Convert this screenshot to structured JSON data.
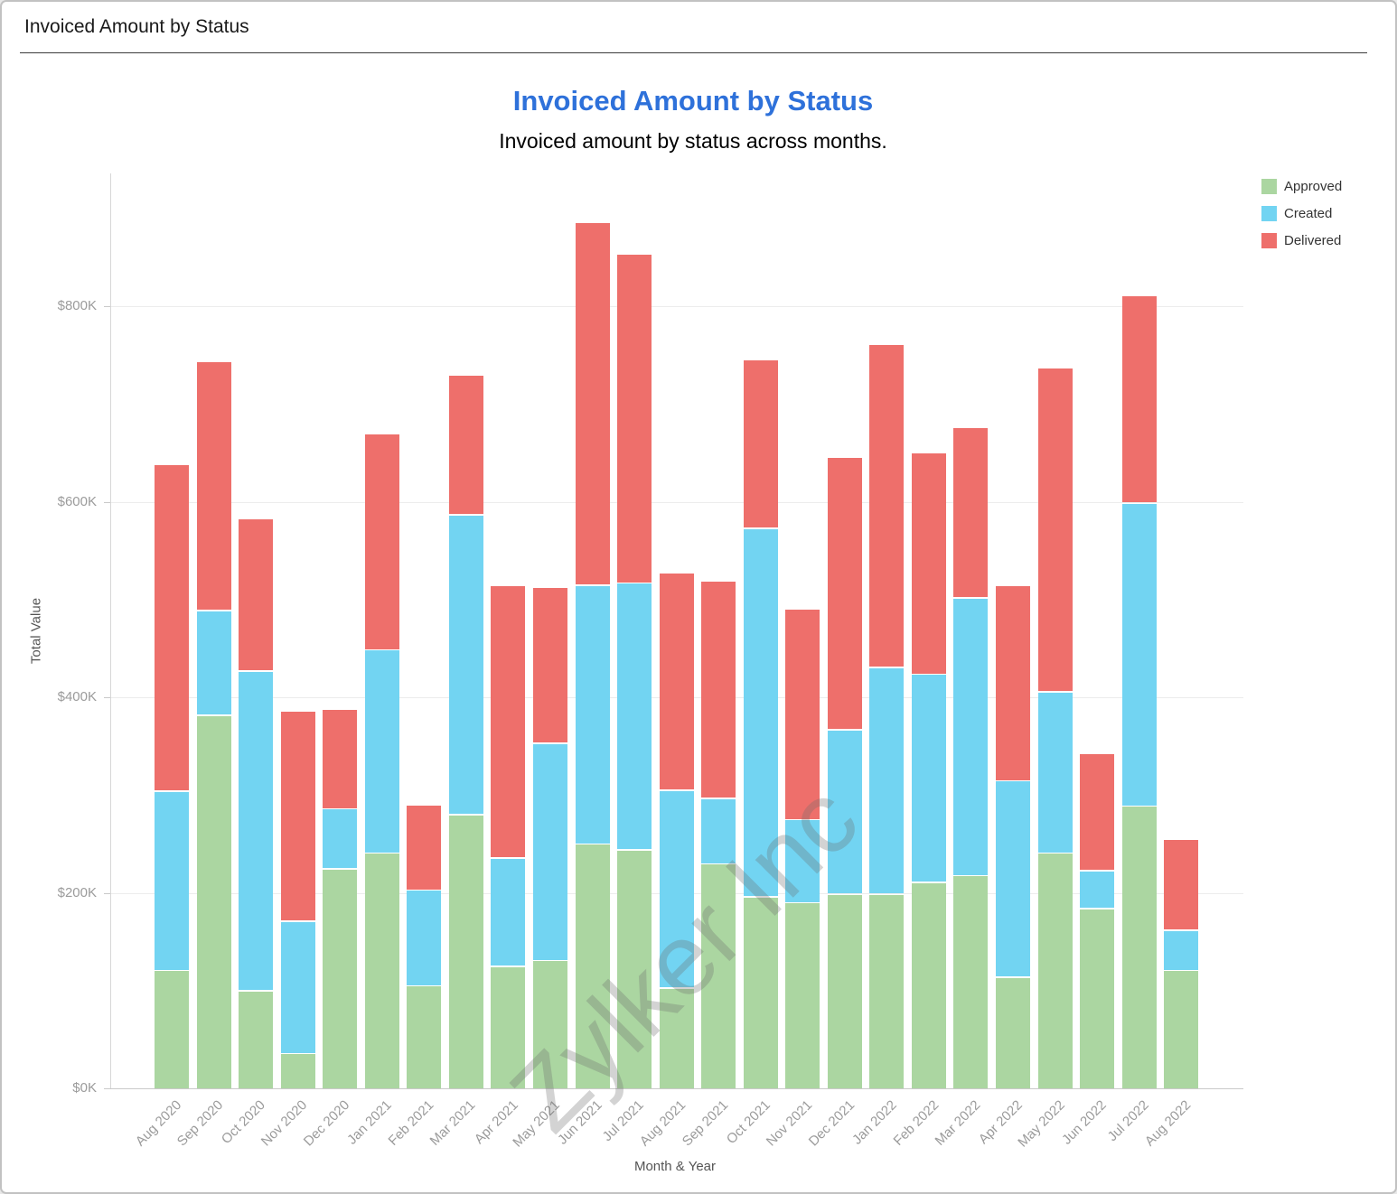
{
  "header": {
    "title": "Invoiced Amount by Status"
  },
  "chart_data": {
    "type": "bar",
    "stacked": true,
    "title": "Invoiced Amount by Status",
    "subtitle": "Invoiced amount by status across months.",
    "xlabel": "Month & Year",
    "ylabel": "Total Value",
    "ylim": [
      0,
      935
    ],
    "grid": true,
    "legend_position": "top-right",
    "value_unit": "K",
    "yticks": {
      "values": [
        0,
        200,
        400,
        600,
        800
      ],
      "labels": [
        "$0K",
        "$200K",
        "$400K",
        "$600K",
        "$800K"
      ]
    },
    "categories": [
      "Aug 2020",
      "Sep 2020",
      "Oct 2020",
      "Nov 2020",
      "Dec 2020",
      "Jan 2021",
      "Feb 2021",
      "Mar 2021",
      "Apr 2021",
      "May 2021",
      "Jun 2021",
      "Jul 2021",
      "Aug 2021",
      "Sep 2021",
      "Oct 2021",
      "Nov 2021",
      "Dec 2021",
      "Jan 2022",
      "Feb 2022",
      "Mar 2022",
      "Apr 2022",
      "May 2022",
      "Jun 2022",
      "Jul 2022",
      "Aug 2022"
    ],
    "series": [
      {
        "name": "Approved",
        "color": "#abd6a1",
        "values": [
          120,
          381,
          99,
          35,
          224,
          240,
          104,
          279,
          124,
          130,
          249,
          243,
          102,
          229,
          195,
          189,
          198,
          198,
          210,
          217,
          113,
          240,
          183,
          288,
          120
        ]
      },
      {
        "name": "Created",
        "color": "#72d4f2",
        "values": [
          183,
          107,
          327,
          135,
          61,
          208,
          98,
          307,
          111,
          222,
          265,
          273,
          202,
          67,
          377,
          85,
          168,
          232,
          213,
          284,
          201,
          165,
          39,
          310,
          41
        ]
      },
      {
        "name": "Delivered",
        "color": "#ee6f6b",
        "values": [
          334,
          255,
          156,
          215,
          102,
          221,
          87,
          143,
          279,
          160,
          371,
          337,
          223,
          222,
          173,
          216,
          279,
          330,
          226,
          174,
          200,
          331,
          120,
          212,
          93
        ]
      }
    ],
    "watermark": "Zylker Inc"
  }
}
